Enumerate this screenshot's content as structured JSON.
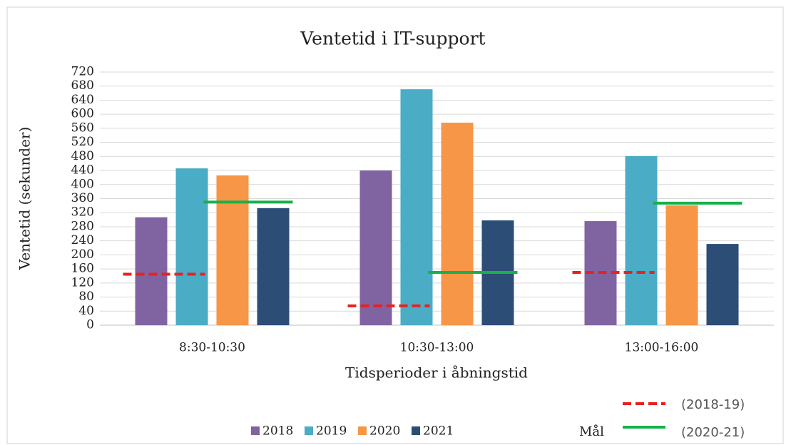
{
  "chart_data": {
    "type": "bar",
    "title": "Ventetid i IT-support",
    "x_label": "Tidsperioder i åbningstid",
    "y_label": "Ventetid (sekunder)",
    "categories": [
      "8:30-10:30",
      "10:30-13:00",
      "13:00-16:00"
    ],
    "series": [
      {
        "name": "2018",
        "color": "#8064a2",
        "values": [
          307,
          440,
          296
        ]
      },
      {
        "name": "2019",
        "color": "#4bacc6",
        "values": [
          446,
          671,
          481
        ]
      },
      {
        "name": "2020",
        "color": "#f79646",
        "values": [
          426,
          576,
          341
        ]
      },
      {
        "name": "2021",
        "color": "#2c4d75",
        "values": [
          333,
          298,
          231
        ]
      }
    ],
    "goal_legend_title": "Mål",
    "goal_series": [
      {
        "name": "(2018-19)",
        "color": "#e8211f",
        "dashed": true,
        "values": [
          145,
          55,
          150
        ]
      },
      {
        "name": "(2020-21)",
        "color": "#19b04b",
        "dashed": false,
        "values": [
          350,
          150,
          347
        ]
      }
    ],
    "ylim": [
      0,
      720
    ],
    "yticks": [
      0,
      40,
      80,
      120,
      160,
      200,
      240,
      280,
      320,
      360,
      400,
      440,
      480,
      520,
      560,
      600,
      640,
      680,
      720
    ],
    "grid": true
  }
}
